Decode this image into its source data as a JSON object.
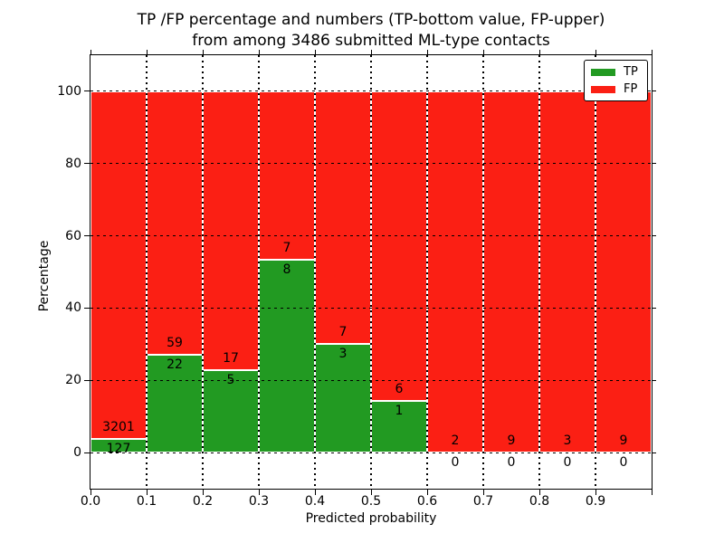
{
  "title": {
    "line1": "TP /FP percentage and numbers (TP-bottom value, FP-upper)",
    "line2": "from among 3486 submitted ML-type contacts"
  },
  "axes": {
    "x_label": "Predicted probability",
    "y_label": "Percentage",
    "x_tick_labels": [
      "0.0",
      "0.1",
      "0.2",
      "0.3",
      "0.4",
      "0.5",
      "0.6",
      "0.7",
      "0.8",
      "0.9"
    ],
    "y_tick_values": [
      0,
      20,
      40,
      60,
      80,
      100
    ]
  },
  "legend": {
    "items": [
      {
        "label": "TP",
        "color": "#229a22"
      },
      {
        "label": "FP",
        "color": "#fb1f14"
      }
    ]
  },
  "chart_data": {
    "type": "bar",
    "stacked": true,
    "normalized_to_percent": true,
    "title": "TP /FP percentage and numbers (TP-bottom value, FP-upper) from among 3486 submitted ML-type contacts",
    "xlabel": "Predicted probability",
    "ylabel": "Percentage",
    "bin_edges": [
      0.0,
      0.1,
      0.2,
      0.3,
      0.4,
      0.5,
      0.6,
      0.7,
      0.8,
      0.9,
      1.0
    ],
    "series": [
      {
        "name": "TP",
        "color": "#229a22",
        "counts": [
          127,
          22,
          5,
          8,
          3,
          1,
          0,
          0,
          0,
          0
        ]
      },
      {
        "name": "FP",
        "color": "#fb1f14",
        "counts": [
          3201,
          59,
          17,
          7,
          7,
          6,
          2,
          9,
          3,
          9
        ]
      }
    ],
    "tp_percent_by_bin": [
      3.82,
      27.16,
      22.73,
      53.33,
      30.0,
      14.29,
      0.0,
      0.0,
      0.0,
      0.0
    ],
    "total_contacts": 3486,
    "ylim": [
      -10,
      110
    ],
    "xlim": [
      0.0,
      1.0
    ],
    "grid": true,
    "grid_style": "dotted",
    "legend_position": "upper right"
  }
}
